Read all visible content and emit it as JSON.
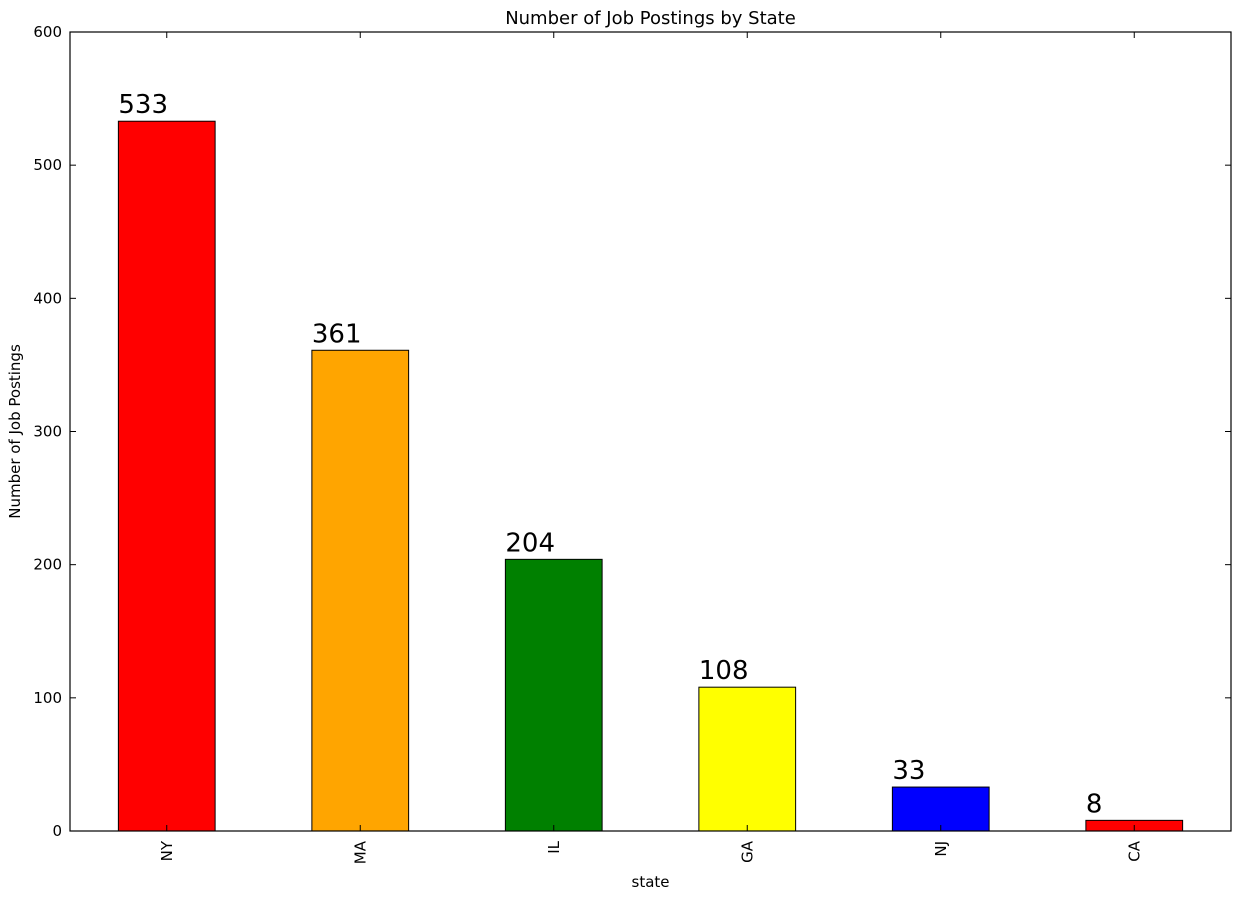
{
  "chart_data": {
    "type": "bar",
    "title": "Number of Job Postings by State",
    "xlabel": "state",
    "ylabel": "Number of Job Postings",
    "categories": [
      "NY",
      "MA",
      "IL",
      "GA",
      "NJ",
      "CA"
    ],
    "values": [
      533,
      361,
      204,
      108,
      33,
      8
    ],
    "data_labels": [
      "533",
      "361",
      "204",
      "108",
      "33",
      "8"
    ],
    "colors": [
      "#ff0000",
      "#ffa500",
      "#008000",
      "#ffff00",
      "#0000ff",
      "#ff0000"
    ],
    "ylim": [
      0,
      600
    ],
    "yticks": [
      0,
      100,
      200,
      300,
      400,
      500,
      600
    ],
    "ytick_labels": [
      "0",
      "100",
      "200",
      "300",
      "400",
      "500",
      "600"
    ],
    "grid": false,
    "legend": "none"
  }
}
